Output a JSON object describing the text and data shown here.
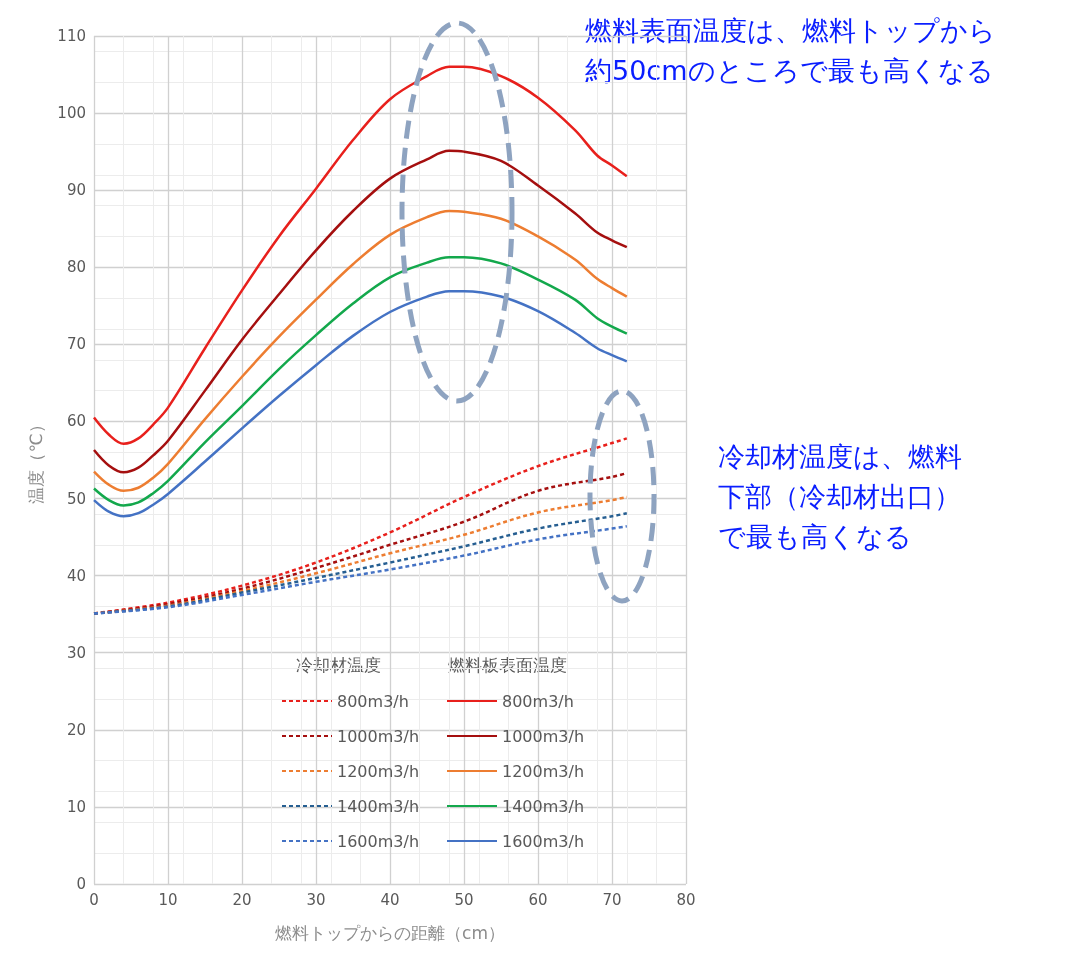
{
  "chart_data": {
    "type": "line",
    "xlabel": "燃料トップからの距離（cm）",
    "ylabel": "温度（℃）",
    "xlim": [
      0,
      80
    ],
    "xticks": [
      0,
      10,
      20,
      30,
      40,
      50,
      60,
      70,
      80
    ],
    "ylim": [
      0,
      110
    ],
    "yticks": [
      0,
      10,
      20,
      30,
      40,
      50,
      60,
      70,
      80,
      90,
      100,
      110
    ],
    "grid": true,
    "legend": "bottom",
    "marker": "none",
    "annotations": [
      "冷却材温度",
      "燃料板表面温度",
      "燃料表面温度は、燃料トップから約50cmのところで最も高くなる",
      "冷却材温度は、燃料下部（冷却材出口）で最も高くなる"
    ],
    "series": [
      {
        "name": "800m3/h",
        "color": "#e8201c",
        "line_style": "dashed",
        "x": [
          0,
          10,
          20,
          30,
          40,
          50,
          60,
          70,
          72
        ],
        "values": [
          35.1,
          36.5,
          38.7,
          41.7,
          45.6,
          50.2,
          54.2,
          57.2,
          57.8
        ]
      },
      {
        "name": "1000m3/h",
        "color": "#a50f0f",
        "line_style": "dashed",
        "x": [
          0,
          10,
          20,
          30,
          40,
          50,
          60,
          70,
          72
        ],
        "values": [
          35.1,
          36.3,
          38.3,
          41.0,
          44.0,
          47.0,
          51.0,
          52.8,
          53.3
        ]
      },
      {
        "name": "1200m3/h",
        "color": "#ed7d31",
        "line_style": "dashed",
        "x": [
          0,
          10,
          20,
          30,
          40,
          50,
          60,
          70,
          72
        ],
        "values": [
          35.1,
          36.1,
          38.0,
          40.3,
          42.9,
          45.3,
          48.2,
          49.8,
          50.2
        ]
      },
      {
        "name": "1400m3/h",
        "color": "#255e91",
        "line_style": "dashed",
        "x": [
          0,
          10,
          20,
          30,
          40,
          50,
          60,
          70,
          72
        ],
        "values": [
          35.1,
          36.0,
          37.8,
          39.7,
          41.7,
          43.8,
          46.1,
          47.7,
          48.1
        ]
      },
      {
        "name": "1600m3/h",
        "color": "#4472c4",
        "line_style": "dashed",
        "x": [
          0,
          10,
          20,
          30,
          40,
          50,
          60,
          70,
          72
        ],
        "values": [
          35.1,
          35.9,
          37.5,
          39.2,
          40.8,
          42.6,
          44.7,
          46.1,
          46.4
        ]
      },
      {
        "name": "800m3/h",
        "color": "#e8201c",
        "line_style": "solid",
        "x": [
          0,
          2,
          4,
          6,
          8,
          10,
          15,
          20,
          25,
          30,
          35,
          40,
          45,
          48,
          50,
          55,
          60,
          65,
          68,
          70,
          72
        ],
        "values": [
          60.5,
          58.3,
          57.1,
          57.8,
          59.6,
          61.8,
          69.5,
          77,
          84,
          90.2,
          96.5,
          101.8,
          104.8,
          106,
          106,
          104.8,
          102,
          97.8,
          94.5,
          93.2,
          91.8
        ]
      },
      {
        "name": "1000m3/h",
        "color": "#a50f0f",
        "line_style": "solid",
        "x": [
          0,
          2,
          4,
          6,
          8,
          10,
          15,
          20,
          25,
          30,
          35,
          40,
          45,
          48,
          50,
          55,
          60,
          65,
          68,
          70,
          72
        ],
        "values": [
          56.3,
          54.3,
          53.4,
          54.0,
          55.6,
          57.5,
          64,
          70.6,
          76.5,
          82.2,
          87.3,
          91.5,
          94,
          95.1,
          95,
          93.8,
          90.6,
          87,
          84.5,
          83.5,
          82.6
        ]
      },
      {
        "name": "1200m3/h",
        "color": "#ed7d31",
        "line_style": "solid",
        "x": [
          0,
          2,
          4,
          6,
          8,
          10,
          15,
          20,
          25,
          30,
          35,
          40,
          45,
          48,
          50,
          55,
          60,
          65,
          68,
          70,
          72
        ],
        "values": [
          53.5,
          51.8,
          51,
          51.4,
          52.7,
          54.5,
          60.3,
          65.8,
          71,
          75.8,
          80.4,
          84.2,
          86.5,
          87.3,
          87.2,
          86.3,
          84,
          81,
          78.5,
          77.3,
          76.2
        ]
      },
      {
        "name": "1400m3/h",
        "color": "#13a84c",
        "line_style": "solid",
        "x": [
          0,
          2,
          4,
          6,
          8,
          10,
          15,
          20,
          25,
          30,
          35,
          40,
          45,
          48,
          50,
          55,
          60,
          65,
          68,
          70,
          72
        ],
        "values": [
          51.3,
          49.8,
          49.1,
          49.5,
          50.7,
          52.3,
          57.3,
          62,
          66.8,
          71.2,
          75.3,
          78.7,
          80.6,
          81.3,
          81.3,
          80.5,
          78.4,
          75.8,
          73.4,
          72.3,
          71.4
        ]
      },
      {
        "name": "1600m3/h",
        "color": "#4472c4",
        "line_style": "solid",
        "x": [
          0,
          2,
          4,
          6,
          8,
          10,
          15,
          20,
          25,
          30,
          35,
          40,
          45,
          48,
          50,
          55,
          60,
          65,
          68,
          70,
          72
        ],
        "values": [
          49.8,
          48.3,
          47.7,
          48.1,
          49.2,
          50.6,
          54.8,
          59.1,
          63.3,
          67.3,
          71.1,
          74.2,
          76.2,
          76.9,
          76.9,
          76.2,
          74.3,
          71.5,
          69.5,
          68.6,
          67.8
        ]
      }
    ]
  }
}
